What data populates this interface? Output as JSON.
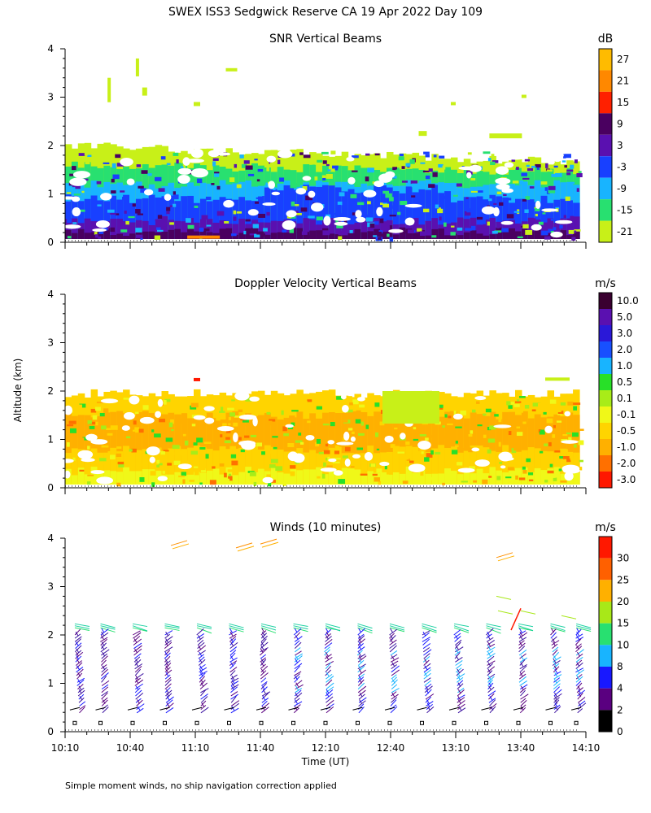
{
  "title": "SWEX ISS3 Sedgwick Reserve CA  19 Apr 2022 Day 109",
  "footnote": "Simple moment winds, no ship navigation correction applied",
  "shared_y_label": "Altitude (km)",
  "shared_x_label": "Time (UT)",
  "chart_data": [
    {
      "type": "heatmap",
      "title": "SNR Vertical Beams",
      "ylabel": "Altitude (km)",
      "ylim": [
        0,
        4
      ],
      "yticks": [
        "0",
        "1",
        "2",
        "3",
        "4"
      ],
      "xlim": [
        "10:10",
        "14:10"
      ],
      "colorbar": {
        "unit": "dB",
        "labels": [
          "27",
          "21",
          "15",
          "9",
          "3",
          "-3",
          "-9",
          "-15",
          "-21"
        ],
        "colors": [
          "#ffbb00",
          "#ff8800",
          "#ff2000",
          "#4a0060",
          "#5a10b0",
          "#1840ff",
          "#18b4ff",
          "#28e070",
          "#c8f018"
        ]
      },
      "layers": [
        {
          "alt_top": 2.0,
          "color": "#c8f018"
        },
        {
          "alt_top": 1.6,
          "color": "#28e070"
        },
        {
          "alt_top": 1.2,
          "color": "#18b4ff"
        },
        {
          "alt_top": 0.9,
          "color": "#1840ff"
        },
        {
          "alt_top": 0.45,
          "color": "#5a10b0"
        },
        {
          "alt_top": 0.22,
          "color": "#4a0060"
        }
      ]
    },
    {
      "type": "heatmap",
      "title": "Doppler Velocity Vertical Beams",
      "ylim": [
        0,
        4
      ],
      "yticks": [
        "0",
        "1",
        "2",
        "3",
        "4"
      ],
      "xlim": [
        "10:10",
        "14:10"
      ],
      "colorbar": {
        "unit": "m/s",
        "labels": [
          "10.0",
          "5.0",
          "3.0",
          "2.0",
          "1.0",
          "0.5",
          "0.1",
          "-0.1",
          "-0.5",
          "-1.0",
          "-2.0",
          "-3.0"
        ],
        "colors": [
          "#3a0030",
          "#5a10b0",
          "#2a18d8",
          "#1850ff",
          "#18b4ff",
          "#28e028",
          "#a8ec18",
          "#f0f818",
          "#ffd400",
          "#ffb000",
          "#ff7000",
          "#ff1800"
        ]
      },
      "layers": [
        {
          "alt_top": 1.95,
          "color": "#ffd400"
        },
        {
          "alt_top": 1.5,
          "color": "#ffb000"
        },
        {
          "alt_top": 0.8,
          "color": "#ffd400"
        },
        {
          "alt_top": 0.35,
          "color": "#f0f818"
        }
      ]
    },
    {
      "type": "scatter",
      "subtype": "wind-barbs",
      "title": "Winds (10 minutes)",
      "xlabel": "Time (UT)",
      "ylim": [
        0,
        4
      ],
      "yticks": [
        "0",
        "1",
        "2",
        "3",
        "4"
      ],
      "xticks": [
        "10:10",
        "10:40",
        "11:10",
        "11:40",
        "12:10",
        "12:40",
        "13:10",
        "13:40",
        "14:10"
      ],
      "colorbar": {
        "unit": "m/s",
        "labels": [
          "30",
          "25",
          "20",
          "15",
          "10",
          "8",
          "4",
          "2",
          "0"
        ],
        "colors": [
          "#ff1800",
          "#ff6000",
          "#ffb000",
          "#a8e818",
          "#28e070",
          "#18b4ff",
          "#1818ff",
          "#5a0080",
          "#000000"
        ]
      },
      "profile_times_hours_after_1010": [
        0.05,
        0.5,
        1.0,
        1.5,
        2.0,
        2.5,
        3.0,
        3.5,
        3.95,
        0.25,
        0.75,
        1.25,
        1.75,
        2.25,
        2.75,
        3.25,
        3.75
      ],
      "barb_top_alt_km": 2.2,
      "barb_bottom_alt_km": 0.3
    }
  ]
}
